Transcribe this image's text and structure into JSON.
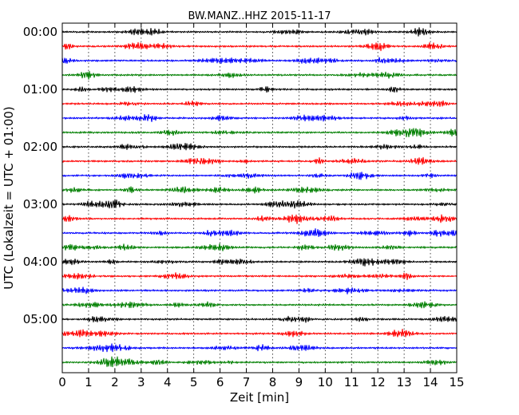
{
  "chart_data": {
    "type": "line",
    "title": "BW.MANZ..HHZ 2015-11-17",
    "xlabel": "Zeit  [min]",
    "ylabel": "UTC (Lokalzeit = UTC + 01:00)",
    "xlim": [
      0,
      15
    ],
    "x_ticks": [
      "0",
      "1",
      "2",
      "3",
      "4",
      "5",
      "6",
      "7",
      "8",
      "9",
      "10",
      "11",
      "12",
      "13",
      "14",
      "15"
    ],
    "y_tick_labels": [
      "00:00",
      "01:00",
      "02:00",
      "03:00",
      "04:00",
      "05:00"
    ],
    "grid": "vertical dotted",
    "rows_per_hour": 4,
    "row_count": 24,
    "colors": [
      "#000000",
      "#ff0000",
      "#0000ff",
      "#007f00"
    ]
  }
}
